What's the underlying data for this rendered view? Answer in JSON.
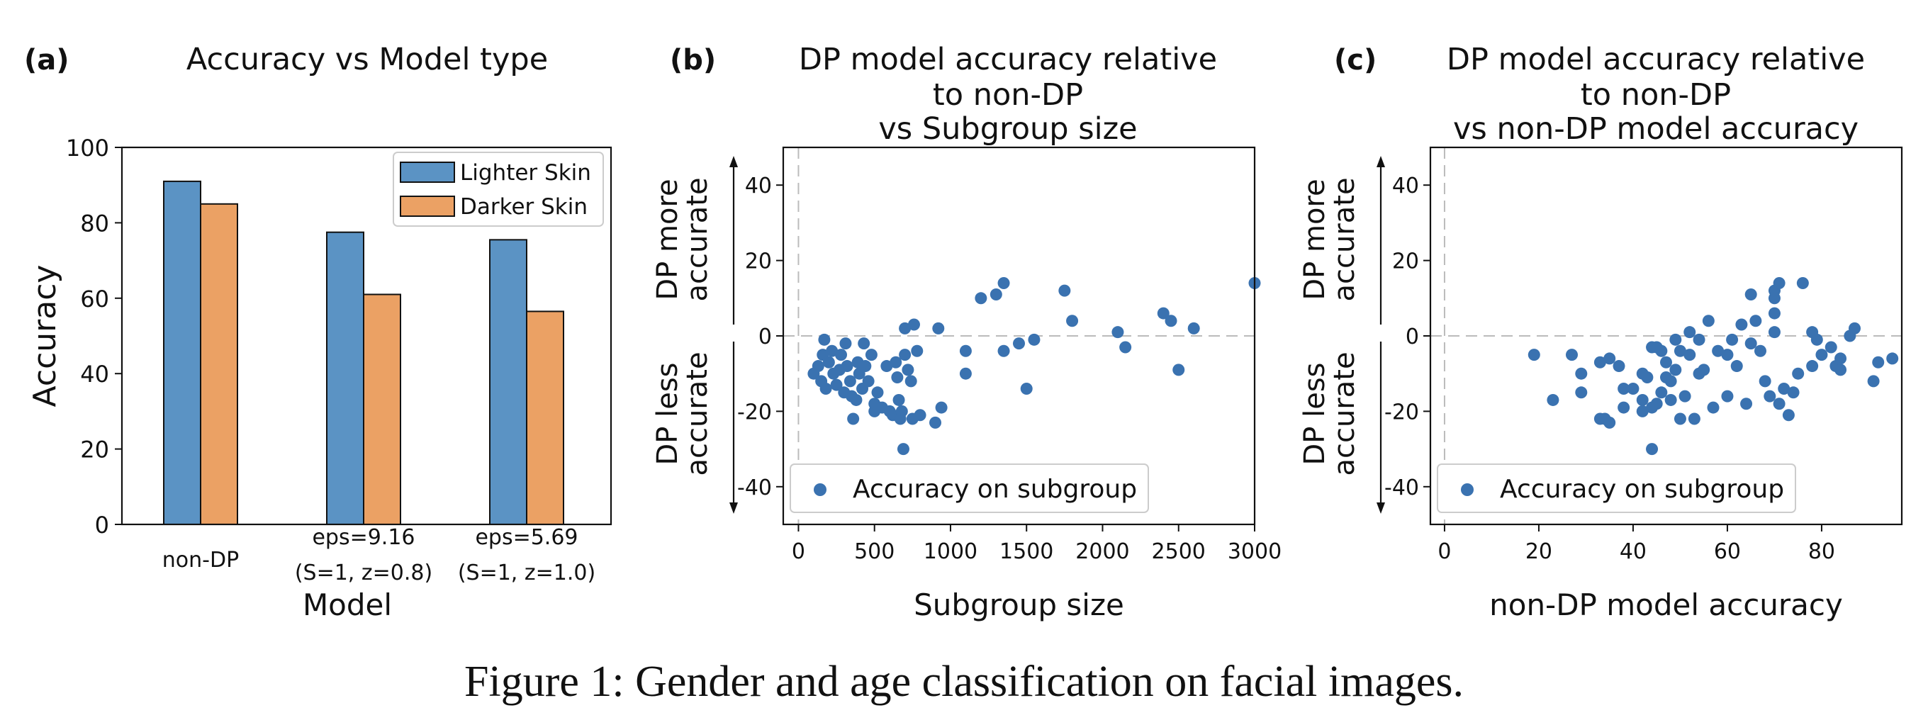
{
  "figure": {
    "caption": "Figure 1: Gender and age classification on facial images."
  },
  "colors": {
    "blue": "#5b93c4",
    "orange": "#eba164",
    "point": "#3a72b0"
  },
  "chart_data": [
    {
      "panel": "(a)",
      "type": "bar",
      "title_lines": [
        "Accuracy vs Model type"
      ],
      "xlabel": "Model",
      "ylabel": "Accuracy",
      "ylim": [
        0,
        100
      ],
      "yticks": [
        0,
        20,
        40,
        60,
        80,
        100
      ],
      "categories": [
        [
          "non-DP"
        ],
        [
          "eps=9.16",
          "(S=1, z=0.8)"
        ],
        [
          "eps=5.69",
          "(S=1, z=1.0)"
        ]
      ],
      "series": [
        {
          "name": "Lighter Skin",
          "values": [
            91,
            77.5,
            75.5
          ]
        },
        {
          "name": "Darker Skin",
          "values": [
            85,
            61,
            56.5
          ]
        }
      ],
      "legend": "top-right"
    },
    {
      "panel": "(b)",
      "type": "scatter",
      "title_lines": [
        "DP model accuracy relative",
        "to non-DP",
        "vs Subgroup size"
      ],
      "xlabel": "Subgroup size",
      "side_labels": {
        "upper": [
          "DP more",
          "accurate"
        ],
        "lower": [
          "DP less",
          "accurate"
        ]
      },
      "xlim": [
        -100,
        3000
      ],
      "ylim": [
        -50,
        50
      ],
      "xticks": [
        0,
        500,
        1000,
        1500,
        2000,
        2500,
        3000
      ],
      "yticks": [
        -40,
        -20,
        0,
        20,
        40
      ],
      "series": [
        {
          "name": "Accuracy on subgroup",
          "points": [
            [
              100,
              -10
            ],
            [
              130,
              -8
            ],
            [
              150,
              -12
            ],
            [
              160,
              -5
            ],
            [
              170,
              -1
            ],
            [
              180,
              -14
            ],
            [
              200,
              -7
            ],
            [
              220,
              -4
            ],
            [
              230,
              -10
            ],
            [
              250,
              -13
            ],
            [
              270,
              -9
            ],
            [
              280,
              -5
            ],
            [
              300,
              -15
            ],
            [
              310,
              -2
            ],
            [
              320,
              -8
            ],
            [
              340,
              -12
            ],
            [
              350,
              -16
            ],
            [
              360,
              -22
            ],
            [
              380,
              -17
            ],
            [
              390,
              -7
            ],
            [
              400,
              -10
            ],
            [
              420,
              -14
            ],
            [
              430,
              -2
            ],
            [
              440,
              -8
            ],
            [
              460,
              -12
            ],
            [
              480,
              -5
            ],
            [
              500,
              -18
            ],
            [
              500,
              -20
            ],
            [
              520,
              -15
            ],
            [
              550,
              -19
            ],
            [
              580,
              -8
            ],
            [
              600,
              -20
            ],
            [
              620,
              -21
            ],
            [
              640,
              -7
            ],
            [
              650,
              -11
            ],
            [
              660,
              -17
            ],
            [
              670,
              -22
            ],
            [
              680,
              -20
            ],
            [
              690,
              -30
            ],
            [
              700,
              -5
            ],
            [
              700,
              2
            ],
            [
              720,
              -9
            ],
            [
              740,
              -12
            ],
            [
              750,
              -22
            ],
            [
              760,
              3
            ],
            [
              780,
              -4
            ],
            [
              800,
              -21
            ],
            [
              900,
              -23
            ],
            [
              920,
              2
            ],
            [
              940,
              -19
            ],
            [
              1100,
              -4
            ],
            [
              1100,
              -10
            ],
            [
              1200,
              10
            ],
            [
              1300,
              11
            ],
            [
              1350,
              14
            ],
            [
              1350,
              -4
            ],
            [
              1450,
              -2
            ],
            [
              1500,
              -14
            ],
            [
              1550,
              -1
            ],
            [
              1750,
              12
            ],
            [
              1800,
              4
            ],
            [
              2100,
              1
            ],
            [
              2150,
              -3
            ],
            [
              2400,
              6
            ],
            [
              2450,
              4
            ],
            [
              2500,
              -9
            ],
            [
              2600,
              2
            ],
            [
              3000,
              14
            ]
          ]
        }
      ],
      "legend": "lower-left"
    },
    {
      "panel": "(c)",
      "type": "scatter",
      "title_lines": [
        "DP model accuracy relative",
        "to non-DP",
        "vs non-DP model accuracy"
      ],
      "xlabel": "non-DP model accuracy",
      "side_labels": {
        "upper": [
          "DP more",
          "accurate"
        ],
        "lower": [
          "DP less",
          "accurate"
        ]
      },
      "xlim": [
        -3,
        97
      ],
      "ylim": [
        -50,
        50
      ],
      "xticks": [
        0,
        20,
        40,
        60,
        80
      ],
      "yticks": [
        -40,
        -20,
        0,
        20,
        40
      ],
      "series": [
        {
          "name": "Accuracy on subgroup",
          "points": [
            [
              19,
              -5
            ],
            [
              23,
              -17
            ],
            [
              27,
              -5
            ],
            [
              29,
              -15
            ],
            [
              29,
              -10
            ],
            [
              33,
              -7
            ],
            [
              33,
              -22
            ],
            [
              34,
              -22
            ],
            [
              35,
              -6
            ],
            [
              35,
              -23
            ],
            [
              37,
              -8
            ],
            [
              38,
              -14
            ],
            [
              38,
              -19
            ],
            [
              40,
              -14
            ],
            [
              42,
              -10
            ],
            [
              42,
              -17
            ],
            [
              42,
              -20
            ],
            [
              43,
              -11
            ],
            [
              44,
              -30
            ],
            [
              44,
              -3
            ],
            [
              44,
              -19
            ],
            [
              45,
              -3
            ],
            [
              45,
              -18
            ],
            [
              46,
              -15
            ],
            [
              46,
              -4
            ],
            [
              47,
              -11
            ],
            [
              47,
              -7
            ],
            [
              48,
              -12
            ],
            [
              48,
              -17
            ],
            [
              49,
              -1
            ],
            [
              49,
              -9
            ],
            [
              50,
              -4
            ],
            [
              50,
              -22
            ],
            [
              51,
              -16
            ],
            [
              52,
              1
            ],
            [
              52,
              -5
            ],
            [
              53,
              -22
            ],
            [
              54,
              -1
            ],
            [
              54,
              -10
            ],
            [
              55,
              -9
            ],
            [
              56,
              4
            ],
            [
              57,
              -19
            ],
            [
              58,
              -4
            ],
            [
              60,
              -16
            ],
            [
              60,
              -5
            ],
            [
              61,
              -1
            ],
            [
              62,
              -8
            ],
            [
              63,
              3
            ],
            [
              64,
              -18
            ],
            [
              65,
              11
            ],
            [
              65,
              -2
            ],
            [
              66,
              4
            ],
            [
              67,
              -4
            ],
            [
              68,
              -12
            ],
            [
              69,
              -16
            ],
            [
              70,
              12
            ],
            [
              70,
              10
            ],
            [
              70,
              6
            ],
            [
              70,
              1
            ],
            [
              71,
              -18
            ],
            [
              71,
              14
            ],
            [
              72,
              -14
            ],
            [
              73,
              -21
            ],
            [
              74,
              -15
            ],
            [
              75,
              -10
            ],
            [
              76,
              14
            ],
            [
              78,
              1
            ],
            [
              78,
              -8
            ],
            [
              79,
              -1
            ],
            [
              80,
              -5
            ],
            [
              82,
              -3
            ],
            [
              83,
              -8
            ],
            [
              84,
              -9
            ],
            [
              84,
              -6
            ],
            [
              86,
              0
            ],
            [
              87,
              2
            ],
            [
              91,
              -12
            ],
            [
              92,
              -7
            ],
            [
              95,
              -6
            ]
          ]
        }
      ],
      "legend": "lower-left"
    }
  ]
}
